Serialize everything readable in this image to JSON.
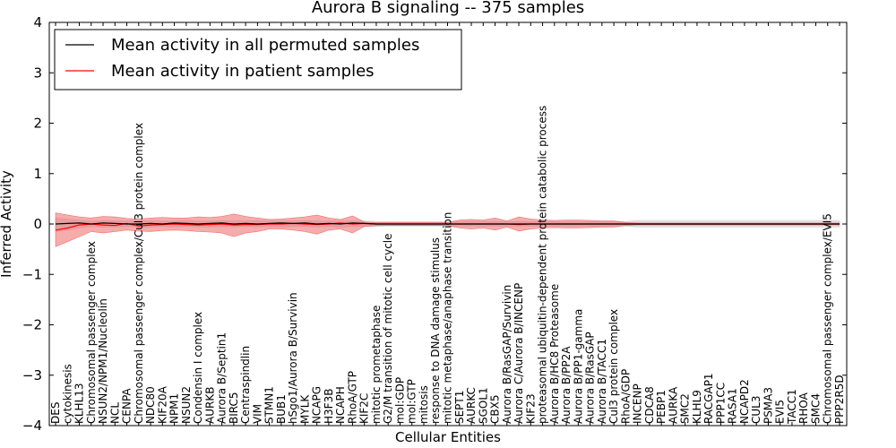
{
  "chart_data": {
    "type": "line",
    "title": "Aurora B signaling -- 375 samples",
    "xlabel": "Cellular Entities",
    "ylabel": "Inferred Activity",
    "ylim": [
      -4,
      4
    ],
    "yticks": [
      "−4",
      "−3",
      "−2",
      "−1",
      "0",
      "1",
      "2",
      "3",
      "4"
    ],
    "legend_position": "top-left",
    "categories": [
      "DES",
      "cytokinesis",
      "KLHL13",
      "Chromosomal passenger complex",
      "NSUN2/NPM1/Nucleolin",
      "NCL",
      "CENPA",
      "Chromosomal passenger complex/Cul3 protein complex",
      "NDC80",
      "KIF20A",
      "NPM1",
      "NSUN2",
      "Condensin I complex",
      "AURKB",
      "Aurora B/Septin1",
      "BIRC5",
      "Centraspindlin",
      "VIM",
      "STMN1",
      "BUB1",
      "hSgo1/Aurora B/Survivin",
      "MYLK",
      "NCAPG",
      "H3F3B",
      "NCAPH",
      "RhoA/GTP",
      "KIF2C",
      "mitotic prometaphase",
      "G2/M transition of mitotic cell cycle",
      "mol:GDP",
      "mol:GTP",
      "mitosis",
      "response to DNA damage stimulus",
      "mitotic metaphase/anaphase transition",
      "SEPT1",
      "AURKC",
      "SGOL1",
      "CBX5",
      "Aurora B/RasGAP/Survivin",
      "Aurora C/Aurora B/INCENP",
      "KIF23",
      "proteasomal ubiquitin-dependent protein catabolic process",
      "Aurora B/HC8 Proteasome",
      "Aurora B/PP2A",
      "Aurora B/PP1-gamma",
      "Aurora B/RasGAP",
      "Aurora B/TACC1",
      "Cul3 protein complex",
      "RhoA/GDP",
      "INCENP",
      "CDCA8",
      "PEBP1",
      "AURKA",
      "SMC2",
      "KLHL9",
      "RACGAP1",
      "PPP1CC",
      "RASA1",
      "NCAPD2",
      "CUL3",
      "PSMA3",
      "EVI5",
      "TACC1",
      "RHOA",
      "SMC4",
      "Chromosomal passenger complex/EVI5",
      "PPP2R5D"
    ],
    "series": [
      {
        "name": "Mean activity in all permuted samples",
        "color": "#000000",
        "values": [
          0.0,
          0.01,
          0.02,
          0.0,
          0.02,
          0.01,
          0.0,
          0.0,
          0.01,
          0.0,
          0.02,
          0.01,
          0.0,
          0.01,
          0.02,
          0.0,
          0.01,
          0.0,
          0.01,
          0.02,
          0.01,
          0.02,
          0.0,
          0.01,
          0.0,
          0.02,
          0.01,
          0.0,
          0.0,
          0.0,
          0.0,
          0.0,
          0.0,
          0.0,
          0.0,
          0.0,
          0.0,
          0.0,
          0.0,
          0.0,
          0.0,
          0.0,
          0.0,
          0.0,
          0.0,
          0.0,
          0.0,
          0.0,
          0.0,
          0.0,
          0.0,
          0.0,
          0.0,
          0.0,
          0.0,
          0.0,
          0.0,
          0.0,
          0.0,
          0.0,
          0.0,
          0.0,
          0.0,
          0.0,
          0.0,
          0.0,
          0.0
        ],
        "band_low": [
          -0.15,
          -0.12,
          -0.08,
          -0.05,
          -0.06,
          -0.06,
          -0.05,
          -0.06,
          -0.06,
          -0.05,
          -0.06,
          -0.05,
          -0.06,
          -0.06,
          -0.05,
          -0.06,
          -0.05,
          -0.06,
          -0.05,
          -0.06,
          -0.05,
          -0.05,
          -0.06,
          -0.05,
          -0.06,
          -0.05,
          -0.05,
          -0.05,
          -0.04,
          -0.04,
          -0.04,
          -0.04,
          -0.04,
          -0.04,
          -0.04,
          -0.04,
          -0.04,
          -0.04,
          -0.04,
          -0.04,
          -0.04,
          -0.04,
          -0.04,
          -0.04,
          -0.04,
          -0.04,
          -0.04,
          -0.04,
          -0.04,
          -0.06,
          -0.06,
          -0.06,
          -0.06,
          -0.06,
          -0.06,
          -0.06,
          -0.06,
          -0.06,
          -0.06,
          -0.06,
          -0.06,
          -0.06,
          -0.06,
          -0.06,
          -0.06,
          -0.06,
          -0.06
        ],
        "band_high": [
          0.12,
          0.1,
          0.08,
          0.06,
          0.07,
          0.06,
          0.06,
          0.06,
          0.07,
          0.06,
          0.06,
          0.07,
          0.06,
          0.06,
          0.07,
          0.06,
          0.06,
          0.07,
          0.06,
          0.06,
          0.06,
          0.07,
          0.06,
          0.06,
          0.06,
          0.06,
          0.06,
          0.05,
          0.05,
          0.05,
          0.05,
          0.05,
          0.05,
          0.05,
          0.05,
          0.05,
          0.05,
          0.05,
          0.05,
          0.05,
          0.05,
          0.05,
          0.05,
          0.05,
          0.05,
          0.05,
          0.05,
          0.05,
          0.05,
          0.07,
          0.07,
          0.07,
          0.07,
          0.07,
          0.07,
          0.07,
          0.07,
          0.07,
          0.07,
          0.07,
          0.07,
          0.07,
          0.07,
          0.07,
          0.07,
          0.07,
          0.07
        ]
      },
      {
        "name": "Mean activity in patient samples",
        "color": "#ff0000",
        "values": [
          -0.12,
          -0.08,
          -0.02,
          0.0,
          -0.02,
          -0.03,
          0.01,
          -0.04,
          -0.02,
          -0.01,
          0.0,
          -0.01,
          -0.02,
          -0.01,
          0.0,
          -0.02,
          -0.01,
          -0.01,
          0.0,
          0.0,
          0.01,
          0.0,
          -0.01,
          0.0,
          0.02,
          0.0,
          0.01,
          0.0,
          0.0,
          0.0,
          0.0,
          0.0,
          0.0,
          0.0,
          0.0,
          0.0,
          0.0,
          0.0,
          0.0,
          -0.01,
          0.0,
          0.0,
          0.0,
          0.0,
          0.0,
          0.0,
          0.0,
          0.0,
          0.0,
          0.0,
          0.0,
          0.0,
          0.0,
          0.0,
          0.0,
          0.0,
          0.0,
          0.0,
          0.0,
          0.0,
          0.0,
          0.0,
          0.0,
          0.0,
          0.0,
          0.0,
          0.0
        ],
        "band_low": [
          -0.45,
          -0.35,
          -0.25,
          -0.15,
          -0.18,
          -0.15,
          -0.12,
          -0.14,
          -0.15,
          -0.13,
          -0.12,
          -0.13,
          -0.15,
          -0.16,
          -0.18,
          -0.25,
          -0.18,
          -0.15,
          -0.1,
          -0.1,
          -0.12,
          -0.15,
          -0.2,
          -0.12,
          -0.1,
          -0.18,
          -0.05,
          -0.03,
          -0.03,
          -0.03,
          -0.03,
          -0.03,
          -0.03,
          -0.03,
          -0.08,
          -0.1,
          -0.08,
          -0.12,
          -0.06,
          -0.14,
          -0.1,
          -0.08,
          -0.07,
          -0.08,
          -0.08,
          -0.07,
          -0.06,
          -0.06,
          -0.03,
          -0.02,
          -0.02,
          -0.02,
          -0.02,
          -0.02,
          -0.02,
          -0.02,
          -0.02,
          -0.02,
          -0.02,
          -0.02,
          -0.02,
          -0.02,
          -0.02,
          -0.02,
          -0.02,
          -0.02,
          -0.02
        ],
        "band_high": [
          0.22,
          0.18,
          0.14,
          0.12,
          0.15,
          0.14,
          0.11,
          0.1,
          0.12,
          0.13,
          0.12,
          0.12,
          0.14,
          0.13,
          0.15,
          0.2,
          0.15,
          0.12,
          0.09,
          0.1,
          0.12,
          0.14,
          0.18,
          0.12,
          0.09,
          0.16,
          0.04,
          0.03,
          0.03,
          0.03,
          0.03,
          0.03,
          0.03,
          0.03,
          0.08,
          0.09,
          0.08,
          0.12,
          0.06,
          0.14,
          0.1,
          0.08,
          0.07,
          0.08,
          0.08,
          0.07,
          0.06,
          0.06,
          0.03,
          0.02,
          0.02,
          0.02,
          0.02,
          0.02,
          0.02,
          0.02,
          0.02,
          0.02,
          0.02,
          0.02,
          0.02,
          0.02,
          0.02,
          0.02,
          0.02,
          0.02,
          0.02
        ]
      }
    ]
  }
}
